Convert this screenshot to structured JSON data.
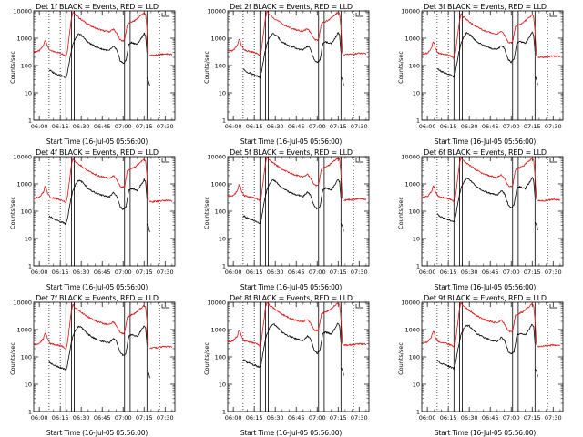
{
  "colors": {
    "events": "#000000",
    "lld": "#e01010",
    "axis": "#000000"
  },
  "chart_data": {
    "type": "line",
    "ylabel": "Counts/sec",
    "xlabel": "Start Time (16-Jul-05 05:56:00)",
    "yscale": "log",
    "ylim": [
      1,
      10000
    ],
    "yticks": [
      1,
      10,
      100,
      1000,
      10000
    ],
    "ytick_labels": [
      "1",
      "10",
      "100",
      "1000",
      "10000"
    ],
    "xlim": [
      "05:56",
      "07:37"
    ],
    "xticks": [
      "06:00",
      "06:15",
      "06:30",
      "06:45",
      "07:00",
      "07:15",
      "07:30"
    ],
    "dotted_lines": [
      "06:07",
      "06:15",
      "07:26"
    ],
    "solid_lines": [
      "06:19",
      "06:23",
      "06:25",
      "07:01",
      "07:05",
      "07:17"
    ],
    "panels": [
      {
        "title": "Det 1f BLACK = Events, RED = LLD",
        "red_offset": 0.03,
        "black_offset": 0.0
      },
      {
        "title": "Det 2f BLACK = Events, RED = LLD",
        "red_offset": 0.05,
        "black_offset": 0.02
      },
      {
        "title": "Det 3f BLACK = Events, RED = LLD",
        "red_offset": -0.05,
        "black_offset": 0.04
      },
      {
        "title": "Det 4f BLACK = Events, RED = LLD",
        "red_offset": 0.0,
        "black_offset": -0.02
      },
      {
        "title": "Det 5f BLACK = Events, RED = LLD",
        "red_offset": 0.06,
        "black_offset": 0.0
      },
      {
        "title": "Det 6f BLACK = Events, RED = LLD",
        "red_offset": 0.03,
        "black_offset": 0.05
      },
      {
        "title": "Det 7f BLACK = Events, RED = LLD",
        "red_offset": -0.02,
        "black_offset": -0.03
      },
      {
        "title": "Det 8f BLACK = Events, RED = LLD",
        "red_offset": 0.08,
        "black_offset": 0.06
      },
      {
        "title": "Det 9f BLACK = Events, RED = LLD",
        "red_offset": 0.04,
        "black_offset": 0.02
      }
    ],
    "series": [
      {
        "name": "LLD",
        "color": "red",
        "segments": [
          [
            [
              "05:56",
              300
            ],
            [
              "06:00",
              320
            ],
            [
              "06:03",
              500
            ],
            [
              "06:04",
              800
            ],
            [
              "06:05",
              700
            ],
            [
              "06:06",
              450
            ],
            [
              "06:08",
              320
            ],
            [
              "06:12",
              290
            ],
            [
              "06:15",
              270
            ],
            [
              "06:18",
              230
            ],
            [
              "06:19",
              200
            ],
            [
              "06:20",
              300
            ],
            [
              "06:22",
              2000
            ],
            [
              "06:23",
              5000
            ],
            [
              "06:24",
              9000
            ],
            [
              "06:25",
              7000
            ],
            [
              "06:27",
              6000
            ],
            [
              "06:30",
              4500
            ],
            [
              "06:35",
              3000
            ],
            [
              "06:40",
              2200
            ],
            [
              "06:45",
              1800
            ],
            [
              "06:50",
              1600
            ],
            [
              "06:53",
              2000
            ],
            [
              "06:55",
              1500
            ],
            [
              "06:58",
              800
            ],
            [
              "07:00",
              750
            ],
            [
              "07:01",
              800
            ],
            [
              "07:03",
              3000
            ],
            [
              "07:05",
              3500
            ],
            [
              "07:08",
              4000
            ],
            [
              "07:12",
              6000
            ],
            [
              "07:15",
              8000
            ],
            [
              "07:16",
              7000
            ],
            [
              "07:17",
              2000
            ],
            [
              "07:18",
              250
            ]
          ],
          [
            [
              "07:19",
              220
            ],
            [
              "07:25",
              230
            ],
            [
              "07:30",
              250
            ],
            [
              "07:35",
              240
            ]
          ]
        ]
      },
      {
        "name": "Events",
        "color": "black",
        "segments": [
          [
            [
              "06:07",
              70
            ],
            [
              "06:10",
              55
            ],
            [
              "06:13",
              48
            ],
            [
              "06:16",
              42
            ],
            [
              "06:18",
              38
            ],
            [
              "06:19",
              35
            ],
            [
              "06:20",
              50
            ],
            [
              "06:22",
              200
            ],
            [
              "06:24",
              600
            ],
            [
              "06:26",
              1000
            ],
            [
              "06:28",
              1400
            ],
            [
              "06:30",
              1300
            ],
            [
              "06:35",
              700
            ],
            [
              "06:40",
              500
            ],
            [
              "06:45",
              400
            ],
            [
              "06:50",
              350
            ],
            [
              "06:53",
              500
            ],
            [
              "06:55",
              400
            ],
            [
              "06:58",
              150
            ],
            [
              "07:00",
              120
            ],
            [
              "07:02",
              150
            ],
            [
              "07:04",
              600
            ],
            [
              "07:06",
              700
            ],
            [
              "07:10",
              600
            ],
            [
              "07:13",
              1000
            ],
            [
              "07:15",
              1500
            ],
            [
              "07:16",
              1200
            ],
            [
              "07:17",
              300
            ]
          ],
          [
            [
              "07:17",
              35
            ],
            [
              "07:18",
              30
            ],
            [
              "07:19",
              18
            ]
          ]
        ]
      }
    ]
  }
}
